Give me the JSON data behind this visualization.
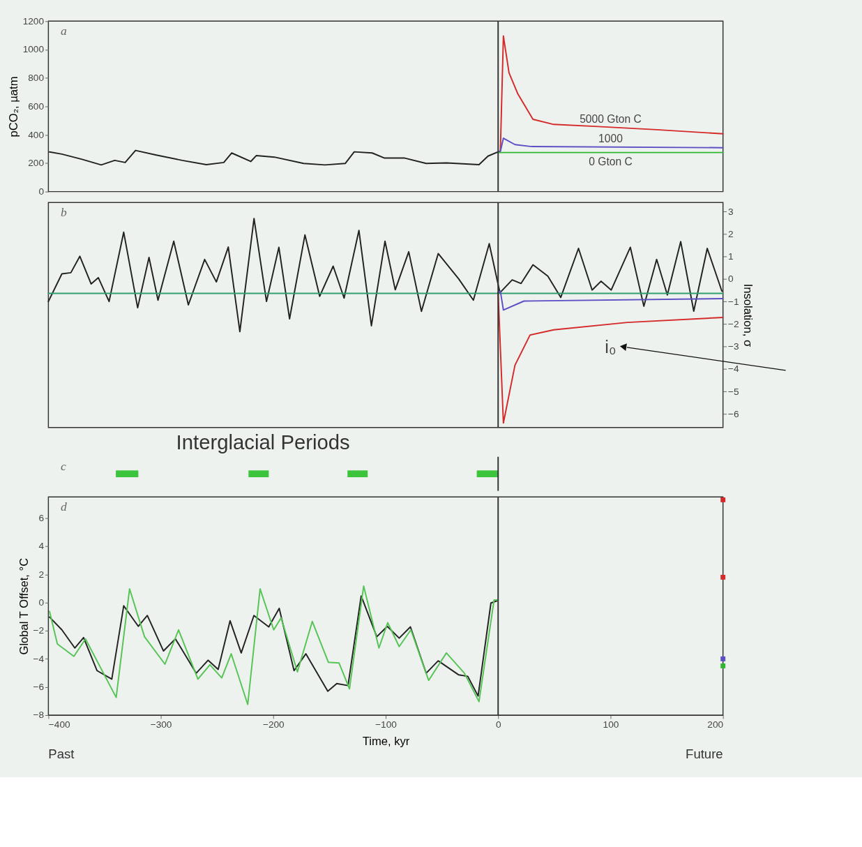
{
  "chart_data": [
    {
      "type": "line",
      "ylabel": "pCO₂, µatm",
      "xlim": [
        -400,
        200
      ],
      "ylim": [
        0,
        1200
      ],
      "yticks": [
        0,
        200,
        400,
        600,
        800,
        1000,
        1200
      ],
      "tick_labels": "y",
      "annotations": [
        "a"
      ],
      "ref_lines": [
        {
          "axis": "x",
          "value": 0,
          "color": "#333333"
        }
      ],
      "series": [
        {
          "color": "#222222",
          "x": [
            -399,
            -388,
            -370,
            -353,
            -341,
            -331.7,
            -322.5,
            -304,
            -281,
            -259.5,
            -244,
            -237,
            -220,
            -215,
            -199,
            -173,
            -154,
            -136,
            -128,
            -112,
            -101,
            -83,
            -64,
            -46,
            -17,
            -9,
            0
          ],
          "values": [
            279,
            264,
            227,
            188,
            220,
            205,
            290,
            257,
            220,
            190,
            205,
            272,
            212,
            254,
            243,
            198,
            188,
            198,
            280,
            272,
            236,
            236,
            198,
            202,
            190,
            250,
            280
          ]
        },
        {
          "name": "5000 Gton C",
          "color": "#d42a2a",
          "x": [
            0,
            2,
            4.7,
            9.7,
            17.6,
            31,
            49.4,
            88.8,
            141,
            200
          ],
          "values": [
            280,
            287,
            1096,
            836,
            687,
            509,
            473,
            458,
            436,
            407
          ]
        },
        {
          "name": "1000",
          "color": "#5b4fc4",
          "x": [
            0,
            2,
            4.7,
            15,
            28.6,
            200
          ],
          "values": [
            280,
            283,
            376,
            331,
            318,
            309
          ]
        },
        {
          "name": "0 Gton C",
          "color": "#2fb82f",
          "x": [
            0,
            200
          ],
          "values": [
            275,
            275
          ]
        }
      ]
    },
    {
      "type": "line",
      "y2label": "Insolation, σ",
      "xlim": [
        -400,
        200
      ],
      "y2lim": [
        -6.6,
        3.4
      ],
      "y2ticks": [
        -6,
        -5,
        -4,
        -3,
        -2,
        -1,
        0,
        1,
        2,
        3
      ],
      "tick_labels": "y",
      "annotations": [
        "b"
      ],
      "ref_lines": [
        {
          "axis": "x",
          "value": 0,
          "color": "#333333"
        }
      ],
      "series": [
        {
          "color": "#222222",
          "axis": "y2",
          "x": [
            -400,
            -388,
            -380,
            -372,
            -362,
            -355.6,
            -346,
            -333,
            -320.6,
            -310.5,
            -302.5,
            -288.5,
            -275.5,
            -261,
            -250.6,
            -240,
            -229.7,
            -217.1,
            -206,
            -195,
            -185.5,
            -171.8,
            -158.7,
            -146.7,
            -137,
            -123.8,
            -112.7,
            -100.6,
            -91.5,
            -79.5,
            -68.2,
            -53.3,
            -35,
            -22,
            -7.9,
            1.6,
            12.5,
            20.4,
            31,
            44.2,
            55.7,
            71.5,
            83.6,
            91.5,
            100.6,
            117.6,
            129.6,
            141,
            150.5,
            162.4,
            174,
            186,
            199
          ],
          "values": [
            -1.0,
            0.23,
            0.28,
            1.01,
            -0.22,
            0.06,
            -1.0,
            2.08,
            -1.28,
            0.96,
            -0.94,
            1.68,
            -1.15,
            0.87,
            -0.13,
            1.42,
            -2.34,
            2.69,
            -1.0,
            1.41,
            -1.77,
            1.96,
            -0.77,
            0.57,
            -0.85,
            2.16,
            -2.08,
            1.68,
            -0.48,
            1.21,
            -1.44,
            1.13,
            0.0,
            -0.94,
            1.57,
            -0.61,
            -0.04,
            -0.2,
            0.63,
            0.13,
            -0.82,
            1.36,
            -0.49,
            -0.1,
            -0.49,
            1.41,
            -1.21,
            0.87,
            -0.71,
            1.66,
            -1.43,
            1.36,
            -0.54
          ]
        },
        {
          "color": "#2e9e6e",
          "axis": "y2",
          "x": [
            -400,
            200
          ],
          "values": [
            -0.64,
            -0.64
          ]
        },
        {
          "color": "#5b4fc4",
          "axis": "y2",
          "x": [
            0,
            2,
            4.7,
            23,
            200
          ],
          "values": [
            -0.6,
            -0.54,
            -1.38,
            -0.98,
            -0.87
          ]
        },
        {
          "name": "i₀",
          "color": "#d42a2a",
          "axis": "y2",
          "x": [
            0,
            4.7,
            15,
            28.4,
            49.4,
            115,
            200
          ],
          "values": [
            -0.6,
            -6.4,
            -3.83,
            -2.49,
            -2.26,
            -1.93,
            -1.71
          ]
        }
      ]
    },
    {
      "type": "bar",
      "orientation": "horizontal",
      "title": "Interglacial Periods",
      "categories": [
        null
      ],
      "xlim": [
        -400,
        200
      ],
      "tick_labels": false,
      "annotations": [
        "c"
      ],
      "ref_lines": [
        {
          "axis": "x",
          "value": 0,
          "color": "#333333"
        }
      ],
      "series": [
        {
          "color": "#3cc43c",
          "base": [
            -340
          ],
          "values": [
            20
          ]
        },
        {
          "color": "#3cc43c",
          "base": [
            -222
          ],
          "values": [
            18
          ]
        },
        {
          "color": "#3cc43c",
          "base": [
            -134
          ],
          "values": [
            18
          ]
        },
        {
          "color": "#3cc43c",
          "base": [
            -19
          ],
          "values": [
            19
          ]
        }
      ]
    },
    {
      "type": "line",
      "ylabel": "Global T Offset, °C",
      "xlabel": "Time, kyr",
      "xlim": [
        -400,
        200
      ],
      "xticks": [
        -400,
        -300,
        -200,
        -100,
        0,
        100,
        200
      ],
      "ylim": [
        -8,
        7.5
      ],
      "yticks": [
        -8,
        -6,
        -4,
        -2,
        0,
        2,
        4,
        6
      ],
      "annotations": [
        "d",
        "Past",
        "Future"
      ],
      "ref_lines": [
        {
          "axis": "x",
          "value": 0,
          "color": "#333333"
        }
      ],
      "series": [
        {
          "color": "#222222",
          "x": [
            -399,
            -388,
            -376.5,
            -368.7,
            -356.7,
            -343.6,
            -333,
            -320,
            -312,
            -297.6,
            -287,
            -268.5,
            -258,
            -249,
            -238.4,
            -228.5,
            -217.2,
            -204,
            -194.7,
            -181.5,
            -171,
            -151.5,
            -143.5,
            -133.5,
            -121.8,
            -107.9,
            -98.6,
            -88,
            -78,
            -64,
            -53.3,
            -35,
            -27,
            -17.8,
            -6.4,
            -1.2
          ],
          "values": [
            -1.03,
            -1.94,
            -3.23,
            -2.49,
            -4.84,
            -5.44,
            -0.23,
            -1.69,
            -0.92,
            -3.44,
            -2.58,
            -5.02,
            -4.1,
            -4.75,
            -1.29,
            -3.58,
            -0.92,
            -1.73,
            -0.41,
            -4.84,
            -3.64,
            -6.3,
            -5.76,
            -5.9,
            0.47,
            -2.43,
            -1.69,
            -2.53,
            -1.73,
            -5.02,
            -4.14,
            -5.14,
            -5.24,
            -6.64,
            -0.03,
            0.11
          ]
        },
        {
          "color": "#55c455",
          "x": [
            -399,
            -392,
            -377.3,
            -367,
            -339.7,
            -327.8,
            -314.5,
            -296.3,
            -284.2,
            -267,
            -256.3,
            -245.8,
            -237.4,
            -222.7,
            -211.7,
            -199.6,
            -193,
            -178.5,
            -165.3,
            -151,
            -141.5,
            -132.2,
            -119.6,
            -106,
            -98.2,
            -88,
            -77.6,
            -61.8,
            -46,
            -30,
            -17,
            -3.6,
            0
          ],
          "values": [
            -0.63,
            -2.94,
            -3.82,
            -2.58,
            -6.74,
            0.97,
            -2.43,
            -4.38,
            -1.94,
            -5.44,
            -4.42,
            -5.35,
            -3.64,
            -7.24,
            0.97,
            -1.94,
            -1.09,
            -4.93,
            -1.34,
            -4.24,
            -4.29,
            -6.13,
            1.17,
            -3.23,
            -1.43,
            -3.13,
            -1.94,
            -5.53,
            -3.58,
            -5.02,
            -7.04,
            0.18,
            0.18
          ]
        },
        {
          "type": "scatter",
          "marker": "square",
          "color": "#d42a2a",
          "x": [
            200,
            200
          ],
          "values": [
            7.3,
            1.8
          ]
        },
        {
          "type": "scatter",
          "marker": "square",
          "color": "#5b4fc4",
          "x": [
            200
          ],
          "values": [
            -4.0
          ]
        },
        {
          "type": "scatter",
          "marker": "square",
          "color": "#2fb82f",
          "x": [
            200
          ],
          "values": [
            -4.5
          ]
        }
      ]
    }
  ]
}
